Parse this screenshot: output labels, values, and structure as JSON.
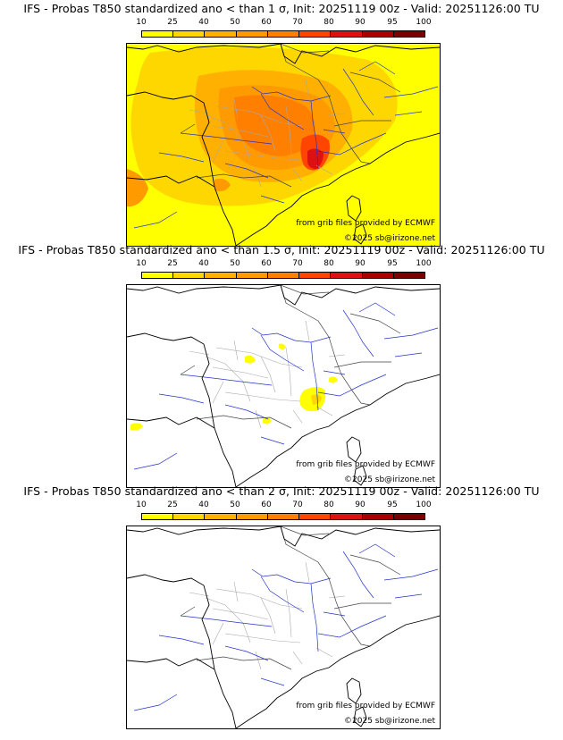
{
  "colorbar": {
    "ticks": [
      "10",
      "25",
      "40",
      "50",
      "60",
      "70",
      "80",
      "90",
      "95",
      "100"
    ],
    "colors": [
      "#FFFF00",
      "#FFD700",
      "#FFB000",
      "#FF9A00",
      "#FF7F00",
      "#FF4500",
      "#DD1111",
      "#AA0000",
      "#7A0000"
    ]
  },
  "panels": [
    {
      "title": "IFS - Probas T850  standardized ano < than 1 σ, Init: 20251119 00z - Valid: 20251126:00 TU",
      "credit_source": "from grib files provided by ECMWF",
      "credit_copyright": "©2025 sb@irizone.net",
      "coverage": "high"
    },
    {
      "title": "IFS - Probas T850  standardized ano < than 1.5 σ, Init: 20251119 00z - Valid: 20251126:00 TU",
      "credit_source": "from grib files provided by ECMWF",
      "credit_copyright": "©2025 sb@irizone.net",
      "coverage": "low"
    },
    {
      "title": "IFS - Probas T850  standardized ano < than 2 σ, Init: 20251119 00z - Valid: 20251126:00 TU",
      "credit_source": "from grib files provided by ECMWF",
      "credit_copyright": "©2025 sb@irizone.net",
      "coverage": "none"
    }
  ]
}
